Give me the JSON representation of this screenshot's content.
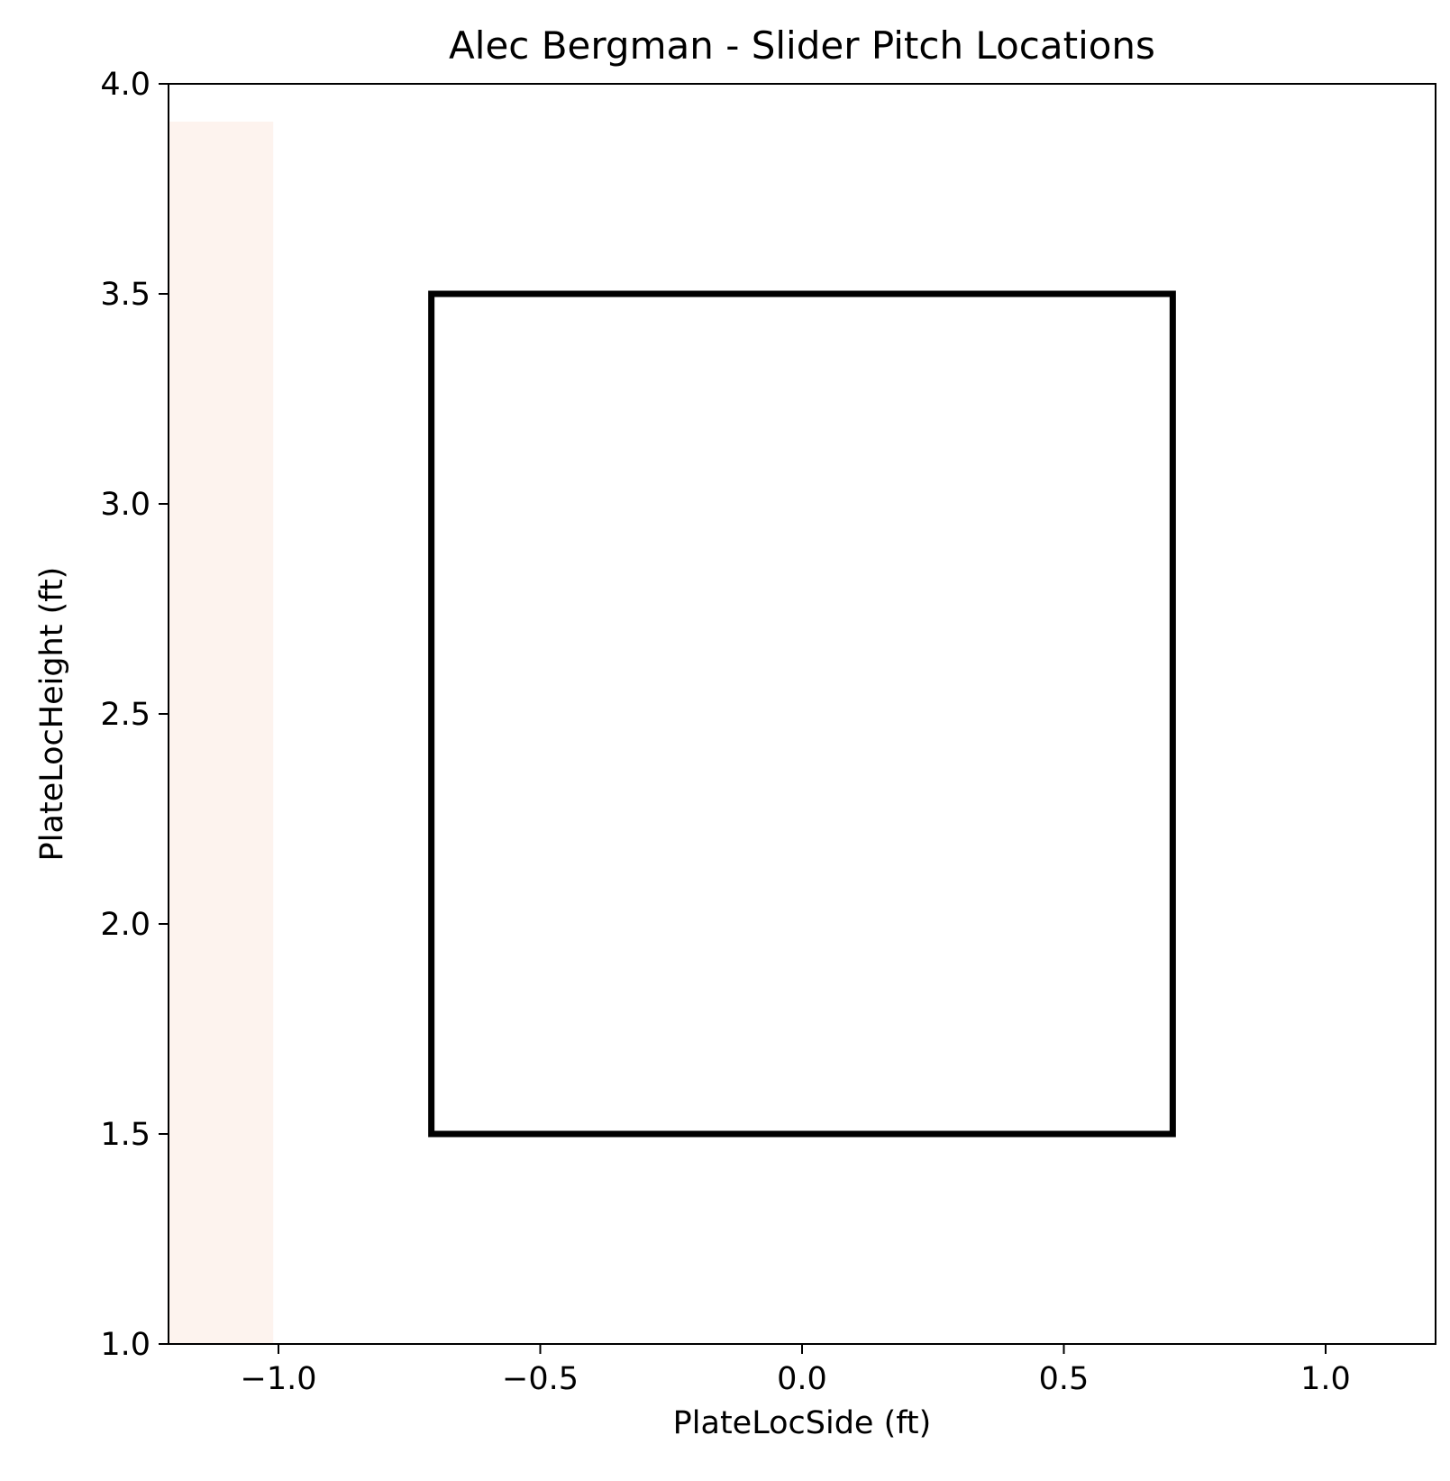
{
  "chart_data": {
    "type": "heatmap",
    "title": "Alec Bergman - Slider Pitch Locations",
    "xlabel": "PlateLocSide (ft)",
    "ylabel": "PlateLocHeight (ft)",
    "xlim": [
      -1.21,
      1.21
    ],
    "ylim": [
      1.0,
      4.0
    ],
    "x_ticks": [
      -1.0,
      -0.5,
      0.0,
      0.5,
      1.0
    ],
    "x_tick_labels": [
      "−1.0",
      "−0.5",
      "0.0",
      "0.5",
      "1.0"
    ],
    "y_ticks": [
      1.0,
      1.5,
      2.0,
      2.5,
      3.0,
      3.5,
      4.0
    ],
    "y_tick_labels": [
      "1.0",
      "1.5",
      "2.0",
      "2.5",
      "3.0",
      "3.5",
      "4.0"
    ],
    "grid": false,
    "density_cells": [
      {
        "x0": -1.21,
        "x1": -1.01,
        "y0": 1.0,
        "y1": 3.91,
        "color": "#fdf3ee"
      }
    ],
    "strike_zone": {
      "x0": -0.708,
      "x1": 0.708,
      "y0": 1.5,
      "y1": 3.5,
      "color": "#000000"
    }
  }
}
